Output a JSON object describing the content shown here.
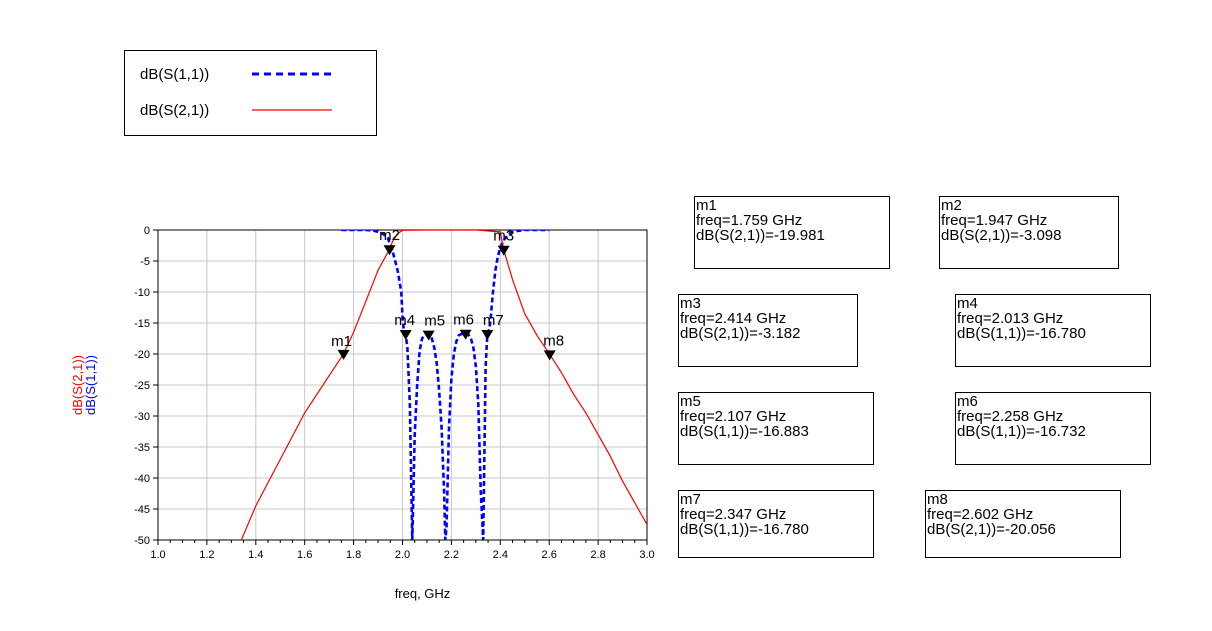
{
  "legend": {
    "items": [
      {
        "label": "dB(S(1,1))",
        "color": "#0000ff",
        "style": "dashed"
      },
      {
        "label": "dB(S(2,1))",
        "color": "#ff0000",
        "style": "solid"
      }
    ]
  },
  "chart_data": {
    "type": "line",
    "xlabel": "freq, GHz",
    "ylabel_series": [
      "dB(S(2,1))",
      "dB(S(1,1))"
    ],
    "xlim": [
      1.0,
      3.0
    ],
    "ylim": [
      -50,
      0
    ],
    "xticks": [
      "1.0",
      "1.2",
      "1.4",
      "1.6",
      "1.8",
      "2.0",
      "2.2",
      "2.4",
      "2.6",
      "2.8",
      "3.0"
    ],
    "yticks": [
      "0",
      "-5",
      "-10",
      "-15",
      "-20",
      "-25",
      "-30",
      "-35",
      "-40",
      "-45",
      "-50"
    ],
    "grid": true,
    "series": [
      {
        "name": "dB(S(1,1))",
        "color": "#0000ff",
        "x": [
          1.75,
          1.8,
          1.85,
          1.88,
          1.9,
          1.92,
          1.94,
          1.96,
          1.98,
          1.995,
          2.0,
          2.005,
          2.013,
          2.02,
          2.03,
          2.04,
          2.05,
          2.06,
          2.07,
          2.08,
          2.09,
          2.1,
          2.107,
          2.12,
          2.13,
          2.14,
          2.15,
          2.16,
          2.17,
          2.175,
          2.18,
          2.19,
          2.2,
          2.21,
          2.22,
          2.23,
          2.24,
          2.25,
          2.258,
          2.27,
          2.28,
          2.29,
          2.3,
          2.31,
          2.32,
          2.33,
          2.34,
          2.347,
          2.355,
          2.36,
          2.37,
          2.38,
          2.39,
          2.4,
          2.42,
          2.44,
          2.46,
          2.5,
          2.55,
          2.6
        ],
        "y": [
          0,
          0,
          0,
          -0.1,
          -0.3,
          -0.6,
          -1.3,
          -3.5,
          -6.5,
          -10,
          -14,
          -16,
          -16.8,
          -19,
          -28,
          -50,
          -33,
          -25,
          -19.5,
          -17.5,
          -16.9,
          -16.7,
          -16.9,
          -17.5,
          -19,
          -21.5,
          -26,
          -32,
          -42,
          -50,
          -48,
          -32,
          -24,
          -20,
          -18,
          -17,
          -16.8,
          -16.7,
          -16.7,
          -16.9,
          -17.5,
          -19,
          -22,
          -28,
          -42,
          -50,
          -22,
          -16.8,
          -16,
          -14.5,
          -10,
          -6.5,
          -4.3,
          -2.8,
          -1.3,
          -0.5,
          -0.2,
          0,
          0,
          0
        ]
      },
      {
        "name": "dB(S(2,1))",
        "color": "#ff0000",
        "x": [
          1.0,
          1.33,
          1.4,
          1.5,
          1.6,
          1.7,
          1.759,
          1.8,
          1.85,
          1.9,
          1.947,
          1.96,
          1.98,
          2.0,
          2.1,
          2.2,
          2.3,
          2.4,
          2.414,
          2.45,
          2.5,
          2.55,
          2.602,
          2.65,
          2.7,
          2.75,
          2.8,
          2.85,
          2.9,
          2.95,
          3.0
        ],
        "y": [
          -51,
          -51,
          -44.5,
          -37,
          -29.5,
          -23.5,
          -19.981,
          -16.5,
          -11.5,
          -6.5,
          -3.098,
          -1.8,
          -0.6,
          -0.05,
          0,
          0,
          0,
          -0.3,
          -3.182,
          -8,
          -13.5,
          -17,
          -20.056,
          -23,
          -26.5,
          -29.5,
          -33,
          -36.5,
          -40.5,
          -44,
          -47.5
        ]
      }
    ],
    "markers": [
      {
        "id": "m1",
        "freq": "1.759",
        "param": "dB(S(2,1))",
        "value": "-19.981",
        "x": 1.759,
        "y": -19.981
      },
      {
        "id": "m2",
        "freq": "1.947",
        "param": "dB(S(2,1))",
        "value": "-3.098",
        "x": 1.947,
        "y": -3.098
      },
      {
        "id": "m3",
        "freq": "2.414",
        "param": "dB(S(2,1))",
        "value": "-3.182",
        "x": 2.414,
        "y": -3.182
      },
      {
        "id": "m4",
        "freq": "2.013",
        "param": "dB(S(1,1))",
        "value": "-16.780",
        "x": 2.013,
        "y": -16.78
      },
      {
        "id": "m5",
        "freq": "2.107",
        "param": "dB(S(1,1))",
        "value": "-16.883",
        "x": 2.107,
        "y": -16.883
      },
      {
        "id": "m6",
        "freq": "2.258",
        "param": "dB(S(1,1))",
        "value": "-16.732",
        "x": 2.258,
        "y": -16.732
      },
      {
        "id": "m7",
        "freq": "2.347",
        "param": "dB(S(1,1))",
        "value": "-16.780",
        "x": 2.347,
        "y": -16.78
      },
      {
        "id": "m8",
        "freq": "2.602",
        "param": "dB(S(2,1))",
        "value": "-20.056",
        "x": 2.602,
        "y": -20.056
      }
    ]
  },
  "marker_boxes": [
    {
      "id": "m1",
      "freq_line": "freq=1.759 GHz",
      "value_line": "dB(S(2,1))=-19.981"
    },
    {
      "id": "m2",
      "freq_line": "freq=1.947 GHz",
      "value_line": "dB(S(2,1))=-3.098"
    },
    {
      "id": "m3",
      "freq_line": "freq=2.414 GHz",
      "value_line": "dB(S(2,1))=-3.182"
    },
    {
      "id": "m4",
      "freq_line": "freq=2.013 GHz",
      "value_line": "dB(S(1,1))=-16.780"
    },
    {
      "id": "m5",
      "freq_line": "freq=2.107 GHz",
      "value_line": "dB(S(1,1))=-16.883"
    },
    {
      "id": "m6",
      "freq_line": "freq=2.258 GHz",
      "value_line": "dB(S(1,1))=-16.732"
    },
    {
      "id": "m7",
      "freq_line": "freq=2.347 GHz",
      "value_line": "dB(S(1,1))=-16.780"
    },
    {
      "id": "m8",
      "freq_line": "freq=2.602 GHz",
      "value_line": "dB(S(2,1))=-20.056"
    }
  ]
}
